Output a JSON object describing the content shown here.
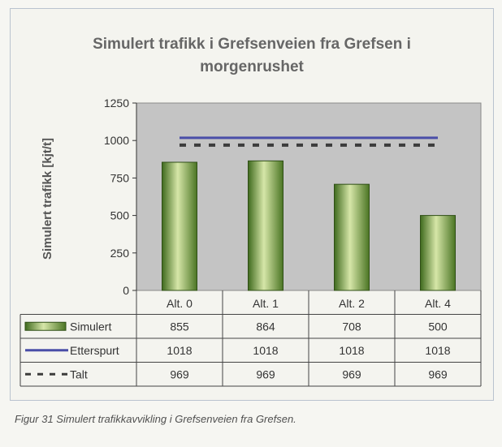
{
  "chart_data": {
    "type": "bar",
    "title_line1": "Simulert trafikk i Grefsenveien fra Grefsen i",
    "title_line2": "morgenrushet",
    "ylabel": "Simulert trafikk [kjt/t]",
    "ylim": [
      0,
      1250
    ],
    "yticks": [
      0,
      250,
      500,
      750,
      1000,
      1250
    ],
    "categories": [
      "Alt. 0",
      "Alt. 1",
      "Alt. 2",
      "Alt. 4"
    ],
    "series": [
      {
        "name": "Simulert",
        "kind": "bar",
        "values": [
          855,
          864,
          708,
          500
        ],
        "color": "#6e9a3a"
      },
      {
        "name": "Etterspurt",
        "kind": "line",
        "values": [
          1018,
          1018,
          1018,
          1018
        ],
        "color": "#4a4ea8"
      },
      {
        "name": "Talt",
        "kind": "dashed-line",
        "values": [
          969,
          969,
          969,
          969
        ],
        "color": "#3c3c3c"
      }
    ],
    "table": [
      [
        "855",
        "864",
        "708",
        "500"
      ],
      [
        "1018",
        "1018",
        "1018",
        "1018"
      ],
      [
        "969",
        "969",
        "969",
        "969"
      ]
    ],
    "grid": false,
    "legend": "data-table"
  },
  "caption": "Figur 31 Simulert trafikkavvikling i Grefsenveien fra Grefsen."
}
